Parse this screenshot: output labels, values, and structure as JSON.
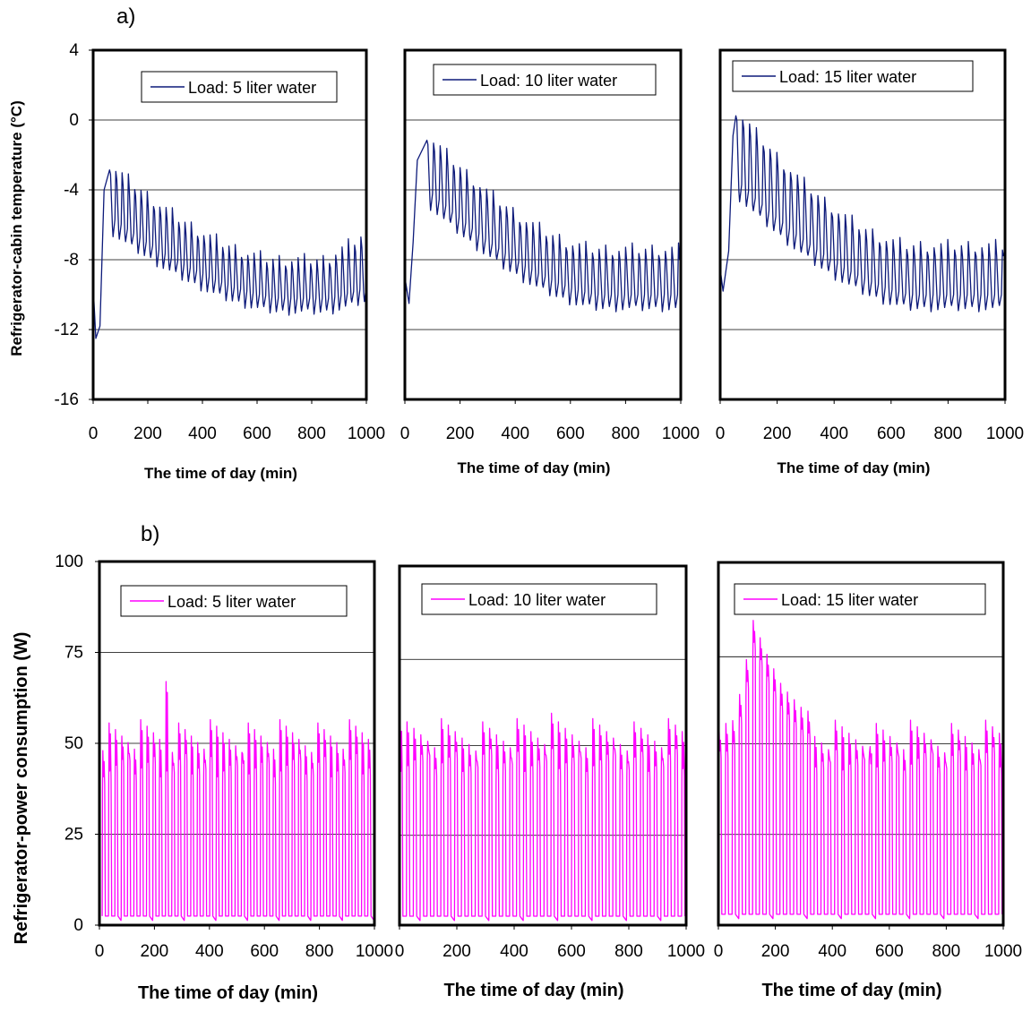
{
  "figure": {
    "label_a": "a)",
    "label_b": "b)",
    "ylabel_a": "Refrigerator-cabin temperature (°C)",
    "ylabel_b": "Refrigerator-power consumption (W)"
  },
  "colors": {
    "temperature_line": "#0d1a7a",
    "power_line": "#ff00ff",
    "gridline": "#000000",
    "frame": "#000000"
  },
  "chart_data": [
    {
      "id": "a1",
      "row": "a",
      "type": "line",
      "series": [
        {
          "name": "Load: 5 liter water"
        }
      ],
      "xlabel": "The time of day (min)",
      "xlim": [
        0,
        1000
      ],
      "xticks": [
        "0",
        "200",
        "400",
        "600",
        "800",
        "1000"
      ],
      "ylim": [
        -16,
        4
      ],
      "yticks": [
        "4",
        "0",
        "-4",
        "-8",
        "-12",
        "-16"
      ],
      "grid_y": [
        0,
        -4,
        -8,
        -12
      ],
      "legend": "top-center",
      "profile": {
        "start": [
          [
            0,
            -9.5
          ],
          [
            10,
            -12.5
          ],
          [
            25,
            -11.8
          ]
        ],
        "jump_at": 40,
        "peak_x": 60,
        "peak_high": -2.5,
        "peak_low": -6.5,
        "end_high": -8,
        "end_low": -11,
        "period": 23,
        "tail": [
          [
            880,
            -7.8,
            -11.5
          ],
          [
            1000,
            -6.5,
            -10.3
          ]
        ]
      }
    },
    {
      "id": "a2",
      "row": "a",
      "type": "line",
      "series": [
        {
          "name": "Load: 10 liter water"
        }
      ],
      "xlabel": "The time of day (min)",
      "xlim": [
        0,
        1000
      ],
      "xticks": [
        "0",
        "200",
        "400",
        "600",
        "800",
        "1000"
      ],
      "ylim": [
        -16,
        4
      ],
      "yticks": [],
      "grid_y": [
        0,
        -4,
        -8,
        -12
      ],
      "legend": "top-center",
      "profile": {
        "start": [
          [
            0,
            -9
          ],
          [
            15,
            -10.5
          ],
          [
            30,
            -7
          ]
        ],
        "jump_at": 45,
        "peak_x": 80,
        "peak_high": -0.8,
        "peak_low": -5,
        "end_high": -7.4,
        "end_low": -10.8,
        "period": 24,
        "tail": []
      }
    },
    {
      "id": "a3",
      "row": "a",
      "type": "line",
      "series": [
        {
          "name": "Load: 15 liter water"
        }
      ],
      "xlabel": "The time of day (min)",
      "xlim": [
        0,
        1000
      ],
      "xticks": [
        "0",
        "200",
        "400",
        "600",
        "800",
        "1000"
      ],
      "ylim": [
        -16,
        4
      ],
      "yticks": [],
      "grid_y": [
        0,
        -4,
        -8,
        -12
      ],
      "legend": "top-center",
      "profile": {
        "start": [
          [
            0,
            -8.5
          ],
          [
            10,
            -9.8
          ],
          [
            30,
            -7.5
          ]
        ],
        "jump_at": 45,
        "peak_x": 55,
        "peak_high": 0.6,
        "peak_low": -4.5,
        "end_high": -7.2,
        "end_low": -10.8,
        "period": 24,
        "tail": []
      }
    },
    {
      "id": "b1",
      "row": "b",
      "type": "line",
      "series": [
        {
          "name": "Load: 5 liter water"
        }
      ],
      "xlabel": "The time of day (min)",
      "xlim": [
        0,
        1000
      ],
      "xticks": [
        "0",
        "200",
        "400",
        "600",
        "800",
        "1000"
      ],
      "ylim": [
        0,
        100
      ],
      "yticks": [
        "100",
        "75",
        "50",
        "25",
        "0"
      ],
      "grid_y": [
        75,
        50,
        25
      ],
      "legend": "top-center",
      "profile": {
        "off_level": 2.5,
        "on_base": 40,
        "on_peak": 52,
        "start_peak": 48,
        "max_peak": 67,
        "max_at": 230,
        "period": 23,
        "first_on": 10
      }
    },
    {
      "id": "b2",
      "row": "b",
      "type": "line",
      "series": [
        {
          "name": "Load: 10 liter water"
        }
      ],
      "xlabel": "The time of day (min)",
      "xlim": [
        0,
        1000
      ],
      "xticks": [
        "0",
        "200",
        "400",
        "600",
        "800",
        "1000"
      ],
      "ylim": [
        0,
        100
      ],
      "yticks": [],
      "grid_y": [
        74,
        50,
        25
      ],
      "legend": "top-center",
      "profile": {
        "off_level": 2.5,
        "on_base": 42,
        "on_peak": 53,
        "start_peak": 57,
        "max_peak": 59,
        "max_at": 520,
        "period": 24,
        "first_on": 0
      }
    },
    {
      "id": "b3",
      "row": "b",
      "type": "line",
      "series": [
        {
          "name": "Load: 15 liter water"
        }
      ],
      "xlabel": "The time of day (min)",
      "xlim": [
        0,
        1000
      ],
      "xticks": [
        "0",
        "200",
        "400",
        "600",
        "800",
        "1000"
      ],
      "ylim": [
        0,
        100
      ],
      "yticks": [],
      "grid_y": [
        74,
        50,
        25
      ],
      "legend": "top-center",
      "profile": {
        "off_level": 3,
        "on_base": 42,
        "on_peak": 52,
        "start_peak": 52,
        "max_peak": 84,
        "max_at": 120,
        "period": 24,
        "first_on": 0,
        "surge": [
          [
            40,
            50
          ],
          [
            80,
            62
          ],
          [
            120,
            80
          ],
          [
            160,
            72
          ],
          [
            220,
            62
          ],
          [
            300,
            55
          ]
        ]
      }
    }
  ]
}
